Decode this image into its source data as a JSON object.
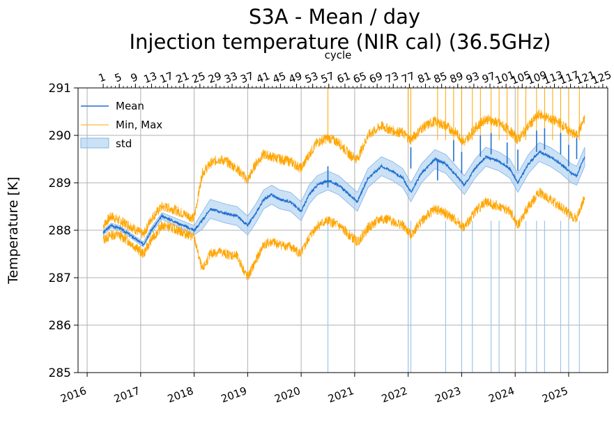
{
  "chart_data": {
    "type": "line",
    "title_line1": "S3A - Mean / day",
    "title_line2": "Injection temperature (NIR cal) (36.5GHz)",
    "ylabel": "Temperature [K]",
    "top_axis_label": "cycle",
    "ylim": [
      285,
      291
    ],
    "yticks": [
      "285",
      "286",
      "287",
      "288",
      "289",
      "290",
      "291"
    ],
    "xlim": [
      2015.83,
      2025.73
    ],
    "xticks": [
      "2016",
      "2017",
      "2018",
      "2019",
      "2020",
      "2021",
      "2022",
      "2023",
      "2024",
      "2025"
    ],
    "cycle_ticks": [
      "1",
      "5",
      "9",
      "13",
      "17",
      "21",
      "25",
      "29",
      "33",
      "37",
      "41",
      "45",
      "49",
      "53",
      "57",
      "61",
      "65",
      "69",
      "73",
      "77",
      "81",
      "85",
      "89",
      "93",
      "97",
      "101",
      "105",
      "109",
      "113",
      "117",
      "121",
      "125"
    ],
    "cycle_start_year": 2016.3,
    "cycle_step_years": 0.0753,
    "grid": true,
    "legend": {
      "position": "upper-left",
      "entries": [
        "Mean",
        "Min, Max",
        "std"
      ]
    },
    "colors": {
      "mean": "#1f6fd1",
      "minmax": "#ffa500",
      "std_fill": "#a9cdf0",
      "grid": "#b0b0b0"
    },
    "series": [
      {
        "name": "Mean",
        "x": [
          2016.3,
          2016.45,
          2016.6,
          2016.8,
          2017.05,
          2017.2,
          2017.4,
          2017.6,
          2017.8,
          2018.0,
          2018.15,
          2018.3,
          2018.45,
          2018.6,
          2018.8,
          2019.0,
          2019.15,
          2019.3,
          2019.45,
          2019.6,
          2019.8,
          2020.0,
          2020.15,
          2020.3,
          2020.5,
          2020.7,
          2020.9,
          2021.05,
          2021.25,
          2021.5,
          2021.7,
          2021.9,
          2022.05,
          2022.25,
          2022.5,
          2022.7,
          2022.9,
          2023.05,
          2023.25,
          2023.45,
          2023.7,
          2023.9,
          2024.05,
          2024.25,
          2024.45,
          2024.65,
          2024.85,
          2025.05,
          2025.15,
          2025.3
        ],
        "values": [
          287.95,
          288.1,
          288.05,
          287.9,
          287.7,
          288.0,
          288.3,
          288.2,
          288.1,
          288.0,
          288.2,
          288.45,
          288.4,
          288.35,
          288.3,
          288.1,
          288.35,
          288.65,
          288.75,
          288.65,
          288.6,
          288.4,
          288.75,
          288.95,
          289.05,
          288.95,
          288.75,
          288.6,
          289.1,
          289.35,
          289.25,
          289.1,
          288.8,
          289.2,
          289.5,
          289.4,
          289.15,
          288.95,
          289.3,
          289.55,
          289.45,
          289.3,
          289.0,
          289.4,
          289.65,
          289.55,
          289.4,
          289.2,
          289.15,
          289.55
        ],
        "std": [
          0.05,
          0.05,
          0.05,
          0.05,
          0.05,
          0.06,
          0.07,
          0.08,
          0.09,
          0.1,
          0.18,
          0.2,
          0.2,
          0.2,
          0.2,
          0.2,
          0.2,
          0.2,
          0.2,
          0.2,
          0.2,
          0.2,
          0.2,
          0.2,
          0.2,
          0.2,
          0.2,
          0.2,
          0.2,
          0.2,
          0.2,
          0.2,
          0.2,
          0.2,
          0.2,
          0.2,
          0.2,
          0.2,
          0.2,
          0.2,
          0.2,
          0.2,
          0.2,
          0.2,
          0.2,
          0.2,
          0.2,
          0.2,
          0.2,
          0.2
        ]
      },
      {
        "name": "Max",
        "x": [
          2016.3,
          2016.45,
          2016.6,
          2016.8,
          2017.05,
          2017.2,
          2017.4,
          2017.6,
          2017.8,
          2018.0,
          2018.15,
          2018.3,
          2018.45,
          2018.6,
          2018.8,
          2019.0,
          2019.15,
          2019.3,
          2019.45,
          2019.6,
          2019.8,
          2020.0,
          2020.15,
          2020.3,
          2020.5,
          2020.7,
          2020.9,
          2021.05,
          2021.25,
          2021.5,
          2021.7,
          2021.9,
          2022.05,
          2022.25,
          2022.5,
          2022.7,
          2022.9,
          2023.05,
          2023.25,
          2023.45,
          2023.7,
          2023.9,
          2024.05,
          2024.25,
          2024.45,
          2024.65,
          2024.85,
          2025.05,
          2025.15,
          2025.3
        ],
        "values": [
          288.1,
          288.3,
          288.2,
          288.1,
          287.9,
          288.25,
          288.5,
          288.45,
          288.35,
          288.25,
          289.2,
          289.4,
          289.5,
          289.45,
          289.3,
          289.05,
          289.4,
          289.6,
          289.55,
          289.5,
          289.45,
          289.3,
          289.6,
          289.85,
          289.95,
          289.85,
          289.6,
          289.5,
          290.0,
          290.2,
          290.1,
          290.05,
          289.9,
          290.15,
          290.3,
          290.2,
          290.05,
          289.85,
          290.15,
          290.35,
          290.25,
          290.1,
          289.9,
          290.2,
          290.45,
          290.35,
          290.25,
          290.05,
          290.0,
          290.35
        ]
      },
      {
        "name": "Min",
        "x": [
          2016.3,
          2016.45,
          2016.6,
          2016.8,
          2017.05,
          2017.2,
          2017.4,
          2017.6,
          2017.8,
          2018.0,
          2018.15,
          2018.3,
          2018.45,
          2018.6,
          2018.8,
          2019.0,
          2019.15,
          2019.3,
          2019.45,
          2019.6,
          2019.8,
          2020.0,
          2020.15,
          2020.3,
          2020.5,
          2020.7,
          2020.9,
          2021.05,
          2021.25,
          2021.5,
          2021.7,
          2021.9,
          2022.05,
          2022.25,
          2022.5,
          2022.7,
          2022.9,
          2023.05,
          2023.25,
          2023.45,
          2023.7,
          2023.9,
          2024.05,
          2024.25,
          2024.45,
          2024.65,
          2024.85,
          2025.05,
          2025.15,
          2025.3
        ],
        "values": [
          287.8,
          287.9,
          287.9,
          287.75,
          287.5,
          287.8,
          288.1,
          288.05,
          287.95,
          287.85,
          287.15,
          287.5,
          287.55,
          287.5,
          287.45,
          287.0,
          287.35,
          287.7,
          287.75,
          287.7,
          287.65,
          287.5,
          287.85,
          288.1,
          288.2,
          288.1,
          287.9,
          287.75,
          288.05,
          288.25,
          288.2,
          288.1,
          287.9,
          288.2,
          288.45,
          288.35,
          288.2,
          288.05,
          288.4,
          288.6,
          288.5,
          288.4,
          288.1,
          288.5,
          288.8,
          288.65,
          288.5,
          288.3,
          288.25,
          288.7
        ]
      }
    ],
    "max_spikes_x": [
      2020.5,
      2022.0,
      2022.05,
      2022.55,
      2022.7,
      2022.85,
      2023.0,
      2023.2,
      2023.35,
      2023.55,
      2023.7,
      2023.85,
      2024.05,
      2024.2,
      2024.4,
      2024.55,
      2024.7,
      2024.85,
      2025.0,
      2025.2
    ],
    "mean_spikes": [
      {
        "x": 2020.5,
        "value": 289.35
      },
      {
        "x": 2022.05,
        "value": 289.75
      },
      {
        "x": 2022.55,
        "value": 289.5
      },
      {
        "x": 2022.85,
        "value": 289.9
      },
      {
        "x": 2023.0,
        "value": 289.65
      },
      {
        "x": 2023.35,
        "value": 290.0
      },
      {
        "x": 2023.55,
        "value": 290.05
      },
      {
        "x": 2023.85,
        "value": 289.85
      },
      {
        "x": 2024.05,
        "value": 289.7
      },
      {
        "x": 2024.4,
        "value": 290.1
      },
      {
        "x": 2024.55,
        "value": 290.15
      },
      {
        "x": 2024.85,
        "value": 290.05
      },
      {
        "x": 2025.0,
        "value": 289.8
      },
      {
        "x": 2025.15,
        "value": 289.95
      }
    ],
    "std_spikes_x": [
      2020.5,
      2022.0,
      2022.05,
      2022.7,
      2023.0,
      2023.2,
      2023.55,
      2023.7,
      2024.2,
      2024.4,
      2024.55,
      2024.85,
      2025.0,
      2025.2
    ]
  }
}
